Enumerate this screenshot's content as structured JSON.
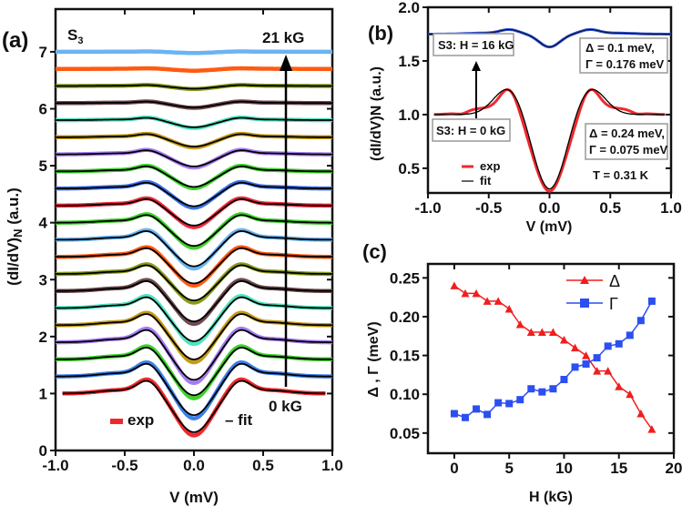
{
  "chart_data": [
    {
      "panel_label": "(a)",
      "type": "line",
      "title": "",
      "sample_label": "S",
      "sample_sub": "3",
      "xlabel": "V (mV)",
      "ylabel": "(dI/dV)",
      "ylabel_sub": "N",
      "ylabel_tail": " (a.u.)",
      "xlim": [
        -1.0,
        1.0
      ],
      "ylim": [
        0,
        7.75
      ],
      "xticks": [
        "-1.0",
        "-0.5",
        "0.0",
        "0.5",
        "1.0"
      ],
      "xtick_values": [
        -1,
        -0.5,
        0,
        0.5,
        1
      ],
      "yticks": [
        "0",
        "1",
        "2",
        "3",
        "4",
        "5",
        "6",
        "7"
      ],
      "ytick_values": [
        0,
        1,
        2,
        3,
        4,
        5,
        6,
        7
      ],
      "field_top": "21 kG",
      "field_bottom": "0 kG",
      "legend": {
        "exp": "exp",
        "fit": "– fit"
      },
      "offsets": [
        1.0,
        1.3,
        1.6,
        1.9,
        2.2,
        2.5,
        2.8,
        3.1,
        3.4,
        3.7,
        4.0,
        4.3,
        4.6,
        4.9,
        5.2,
        5.5,
        5.8,
        6.1,
        6.4,
        6.7,
        7.0
      ],
      "dip_depths": [
        0.7,
        0.7,
        0.65,
        0.68,
        0.62,
        0.6,
        0.55,
        0.48,
        0.48,
        0.48,
        0.42,
        0.36,
        0.32,
        0.28,
        0.22,
        0.17,
        0.13,
        0.08,
        0.05,
        0.03,
        0.02
      ],
      "colors": [
        "#f0282d",
        "#3b7fe8",
        "#3ed12c",
        "#a77cf2",
        "#c49a16",
        "#4fe3c0",
        "#6e4a4f",
        "#8a9a18",
        "#ff5a12",
        "#6ab4f2",
        "#3ed12c",
        "#f0283c",
        "#3b6fe8",
        "#3ed12c",
        "#a77cf2",
        "#c49a16",
        "#4fe3c0",
        "#6e4a4f",
        "#8a9a18",
        "#ff5a12",
        "#6ab4f2"
      ]
    },
    {
      "panel_label": "(b)",
      "type": "line",
      "xlabel": "V (mV)",
      "ylabel": "(dI/dV)N (a.u.)",
      "xlim": [
        -1.0,
        1.0
      ],
      "ylim": [
        0.27,
        2.0
      ],
      "xticks": [
        "-1.0",
        "-0.5",
        "0.0",
        "0.5",
        "1.0"
      ],
      "xtick_values": [
        -1,
        -0.5,
        0,
        0.5,
        1
      ],
      "yticks": [
        "0.5",
        "1.0",
        "1.5",
        "2.0"
      ],
      "ytick_values": [
        0.5,
        1.0,
        1.5,
        2.0
      ],
      "series": [
        {
          "name": "S3: H = 0 kG",
          "baseline": 1.0,
          "min": 0.3,
          "peak": 1.27,
          "color": "#f0282d"
        },
        {
          "name": "S3: H = 16 kG",
          "baseline": 1.75,
          "min": 1.63,
          "color": "#2b4fd8"
        }
      ],
      "annotations": {
        "h16": "S3: H = 16 kG",
        "h0": "S3: H = 0 kG",
        "p16a": "Δ = 0.1 meV,",
        "p16b": "Γ = 0.176 meV",
        "p0a": "Δ = 0.24 meV,",
        "p0b": "Γ = 0.075 meV",
        "temp": "T = 0.31 K"
      },
      "legend": {
        "exp": "exp",
        "fit": "fit"
      }
    },
    {
      "panel_label": "(c)",
      "type": "line",
      "xlabel": "H (kG)",
      "ylabel": "Δ , Γ (meV)",
      "xlim": [
        -2.4,
        20
      ],
      "ylim": [
        0.024,
        0.268
      ],
      "xticks": [
        "0",
        "5",
        "10",
        "15",
        "20"
      ],
      "xtick_values": [
        0,
        5,
        10,
        15,
        20
      ],
      "yticks": [
        "0.05",
        "0.10",
        "0.15",
        "0.20",
        "0.25"
      ],
      "ytick_values": [
        0.05,
        0.1,
        0.15,
        0.2,
        0.25
      ],
      "x": [
        0,
        1,
        2,
        3,
        4,
        5,
        6,
        7,
        8,
        9,
        10,
        11,
        12,
        13,
        14,
        15,
        16,
        17,
        18
      ],
      "series": [
        {
          "name": "Δ",
          "color": "#f01e1e",
          "marker": "triangle",
          "values": [
            0.24,
            0.23,
            0.23,
            0.22,
            0.22,
            0.21,
            0.19,
            0.18,
            0.18,
            0.18,
            0.17,
            0.16,
            0.15,
            0.13,
            0.13,
            0.11,
            0.1,
            0.075,
            0.055
          ]
        },
        {
          "name": "Γ",
          "color": "#2b4ff0",
          "marker": "square",
          "values": [
            0.075,
            0.07,
            0.081,
            0.074,
            0.089,
            0.088,
            0.093,
            0.107,
            0.103,
            0.107,
            0.119,
            0.135,
            0.139,
            0.147,
            0.162,
            0.165,
            0.176,
            0.195,
            0.22
          ]
        }
      ]
    }
  ]
}
